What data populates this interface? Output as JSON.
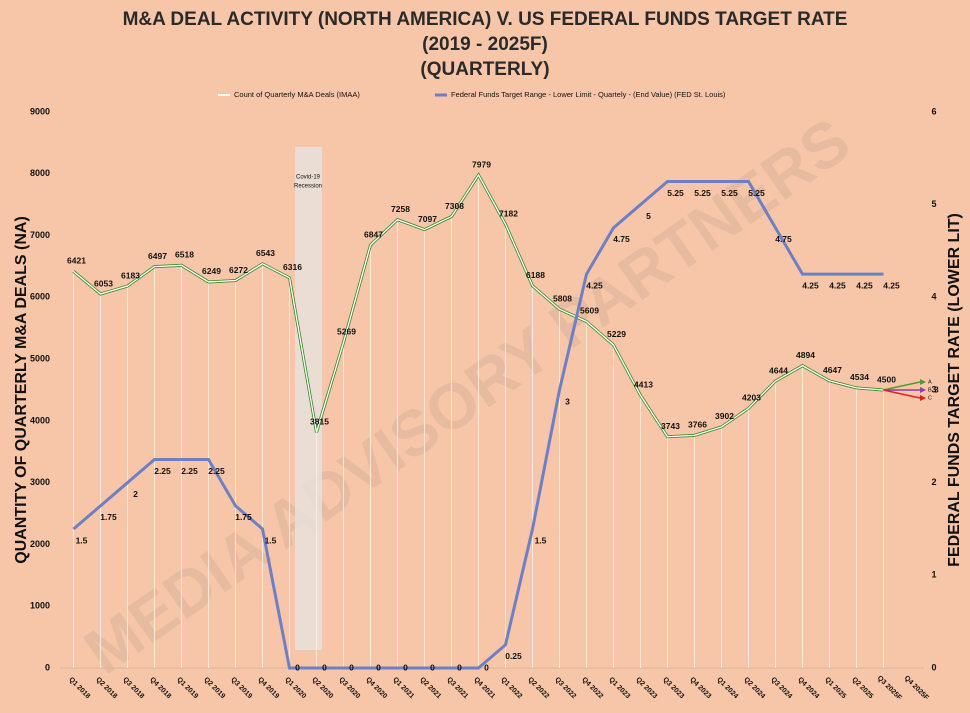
{
  "chart_data": {
    "type": "line",
    "title": [
      "M&A DEAL ACTIVITY (NORTH AMERICA) V. US FEDERAL FUNDS TARGET RATE",
      "(2019 - 2025F)",
      "(QUARTERLY)"
    ],
    "y_label": "QUANTITY OF QUARTERLY M&A DEALS (NA)",
    "y2_label": "FEDERAL FUNDS TARGET RATE (LOWER LIT)",
    "annotations": {
      "recession": [
        "Covid-19",
        "Recession"
      ],
      "scenarios": [
        "A",
        "B",
        "C"
      ],
      "scenario_value": "3",
      "watermark": "MEDIA ADVISORY PARTNERS"
    },
    "categories": [
      "Q1 2018",
      "Q2 2018",
      "Q3 2018",
      "Q4 2018",
      "Q1 2019",
      "Q2 2019",
      "Q3 2019",
      "Q4 2019",
      "Q1 2020",
      "Q2 2020",
      "Q3 2020",
      "Q4 2020",
      "Q1 2021",
      "Q2 2021",
      "Q3 2021",
      "Q4 2021",
      "Q1 2022",
      "Q2 2022",
      "Q3 2022",
      "Q4 2022",
      "Q1 2023",
      "Q2 2023",
      "Q3 2023",
      "Q4 2023",
      "Q1 2024",
      "Q2 2024",
      "Q3 2024",
      "Q4 2024",
      "Q1 2025",
      "Q2 2025",
      "Q3 2025F",
      "Q4 2025F"
    ],
    "series": [
      {
        "name": "Count of Quarterly M&A Deals (IMAA)",
        "color": "#ffffff",
        "outline": "#3f8a2e",
        "values": [
          6421,
          6053,
          6183,
          6497,
          6518,
          6249,
          6272,
          6543,
          6316,
          3815,
          5269,
          6847,
          7258,
          7097,
          7308,
          7979,
          7182,
          6188,
          5808,
          5609,
          5229,
          4413,
          3743,
          3766,
          3902,
          4203,
          4644,
          4894,
          4647,
          4534,
          4500,
          null
        ]
      },
      {
        "name": "Federal Funds Target Range - Lower Limit - Quartely - (End Value) (FED St. Louis)",
        "color": "#6e7fc6",
        "axis": "y2",
        "values": [
          1.5,
          1.75,
          2,
          2.25,
          2.25,
          2.25,
          1.75,
          1.5,
          0,
          0,
          0,
          0,
          0,
          0,
          0,
          0,
          0.25,
          1.5,
          3,
          4.25,
          4.75,
          5,
          5.25,
          5.25,
          5.25,
          5.25,
          4.75,
          4.25,
          4.25,
          4.25,
          4.25,
          null
        ]
      }
    ],
    "ylim": [
      0,
      9000
    ],
    "yticks": [
      0,
      1000,
      2000,
      3000,
      4000,
      5000,
      6000,
      7000,
      8000,
      9000
    ],
    "y2lim": [
      0,
      6
    ],
    "y2ticks": [
      0,
      1,
      2,
      3,
      4,
      5,
      6
    ]
  }
}
